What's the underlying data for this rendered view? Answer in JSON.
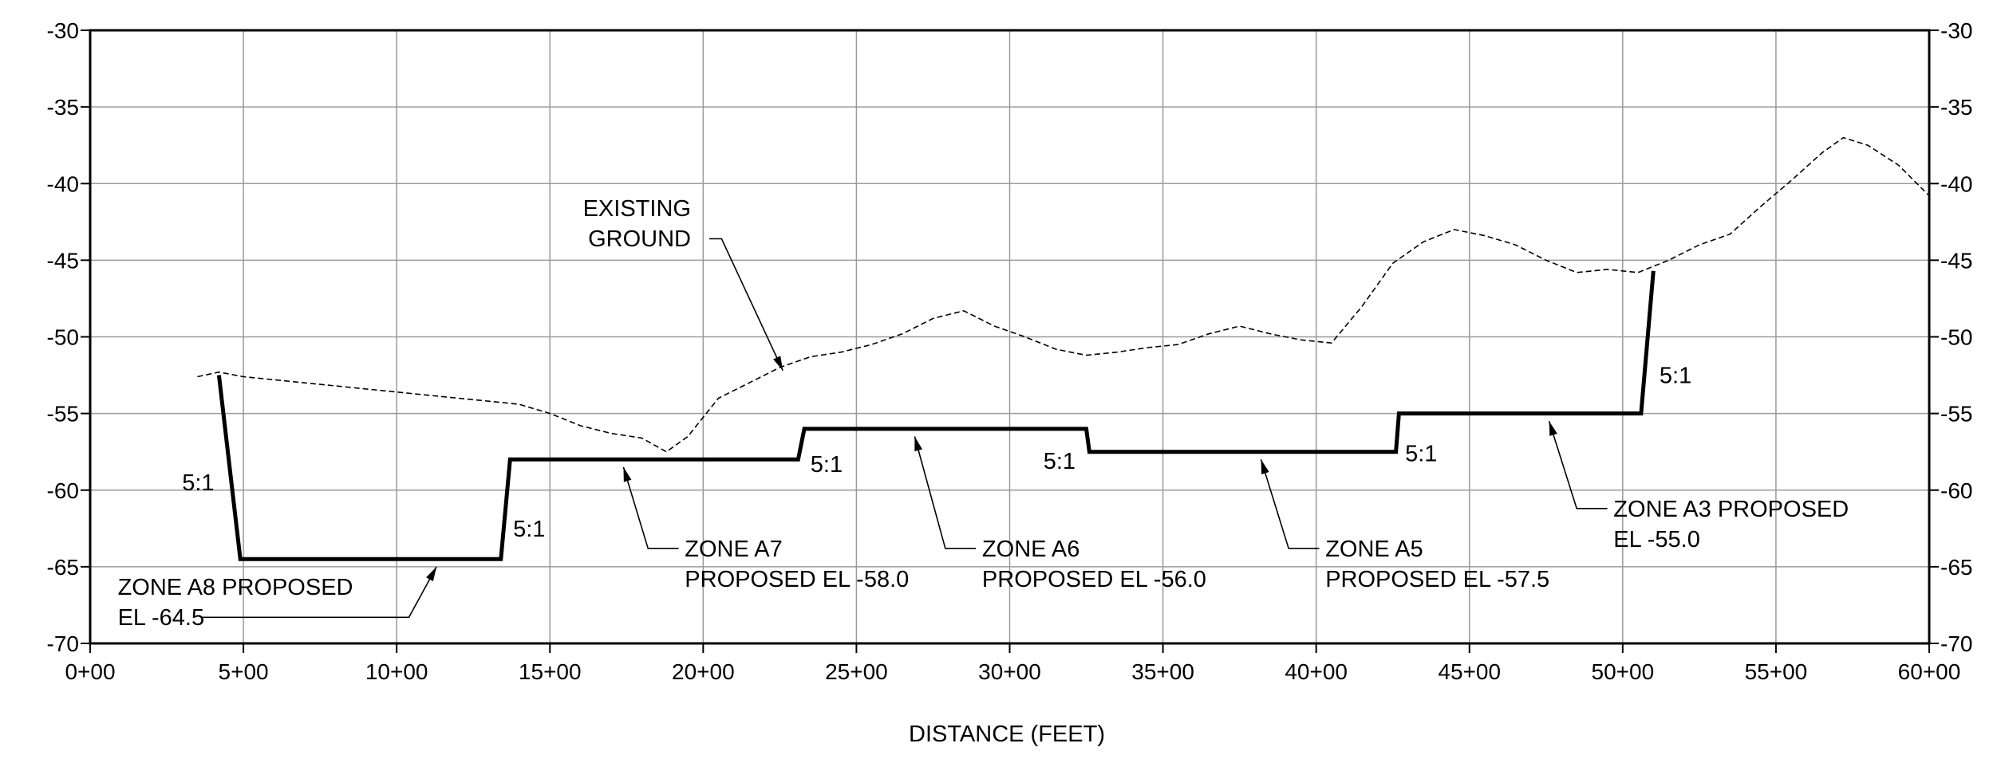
{
  "chart_data": {
    "type": "line",
    "xlabel": "DISTANCE (FEET)",
    "ylabel": "",
    "xlim": [
      0,
      60
    ],
    "ylim": [
      -70,
      -30
    ],
    "grid": true,
    "x_ticks": [
      {
        "value": 0,
        "label": "0+00"
      },
      {
        "value": 5,
        "label": "5+00"
      },
      {
        "value": 10,
        "label": "10+00"
      },
      {
        "value": 15,
        "label": "15+00"
      },
      {
        "value": 20,
        "label": "20+00"
      },
      {
        "value": 25,
        "label": "25+00"
      },
      {
        "value": 30,
        "label": "30+00"
      },
      {
        "value": 35,
        "label": "35+00"
      },
      {
        "value": 40,
        "label": "40+00"
      },
      {
        "value": 45,
        "label": "45+00"
      },
      {
        "value": 50,
        "label": "50+00"
      },
      {
        "value": 55,
        "label": "55+00"
      },
      {
        "value": 60,
        "label": "60+00"
      }
    ],
    "y_ticks": [
      {
        "value": -30,
        "label": "-30"
      },
      {
        "value": -35,
        "label": "-35"
      },
      {
        "value": -40,
        "label": "-40"
      },
      {
        "value": -45,
        "label": "-45"
      },
      {
        "value": -50,
        "label": "-50"
      },
      {
        "value": -55,
        "label": "-55"
      },
      {
        "value": -60,
        "label": "-60"
      },
      {
        "value": -65,
        "label": "-65"
      },
      {
        "value": -70,
        "label": "-70"
      }
    ],
    "series": [
      {
        "style": "dashed",
        "x": [
          3.5,
          4.2,
          5,
          6,
          7,
          8,
          9,
          10,
          11,
          12,
          13,
          14,
          15,
          16,
          17,
          18,
          18.8,
          19.5,
          20.5,
          21.5,
          22.5,
          23.5,
          24.5,
          25.5,
          26.5,
          27.5,
          28.5,
          29.5,
          30.5,
          31.5,
          32.5,
          33.5,
          34.5,
          35.5,
          36.5,
          37.5,
          38.5,
          39.5,
          40.5,
          41.5,
          42.5,
          43.5,
          44.5,
          45.5,
          46.5,
          47.5,
          48.5,
          49.5,
          50.5,
          51.5,
          52.5,
          53.5,
          54.5,
          55.5,
          56.5,
          57.2,
          58,
          59,
          60
        ],
        "y": [
          -52.6,
          -52.3,
          -52.6,
          -52.8,
          -53,
          -53.2,
          -53.4,
          -53.6,
          -53.8,
          -54,
          -54.2,
          -54.4,
          -55,
          -55.8,
          -56.3,
          -56.6,
          -57.5,
          -56.5,
          -54,
          -53,
          -52,
          -51.3,
          -51,
          -50.5,
          -49.8,
          -48.8,
          -48.3,
          -49.3,
          -50,
          -50.8,
          -51.2,
          -51,
          -50.7,
          -50.5,
          -49.8,
          -49.3,
          -49.8,
          -50.2,
          -50.4,
          -48,
          -45.2,
          -43.8,
          -43,
          -43.4,
          -44,
          -45,
          -45.8,
          -45.6,
          -45.8,
          -45,
          -44,
          -43.3,
          -41.5,
          -39.8,
          -38,
          -37,
          -37.5,
          -38.8,
          -40.8
        ]
      },
      {
        "style": "solid",
        "x": [
          4.2,
          4.9,
          13.4,
          13.7,
          23.1,
          23.3,
          32.5,
          32.6,
          42.6,
          42.7,
          50.6,
          51
        ],
        "y": [
          -52.5,
          -64.5,
          -64.5,
          -58,
          -58,
          -56,
          -56,
          -57.5,
          -57.5,
          -55,
          -55,
          -45.7
        ]
      }
    ],
    "annotations": [
      {
        "lines": [
          "EXISTING",
          "GROUND"
        ],
        "anchor": "end",
        "tx": 19.6,
        "ty": -41.6,
        "leader": [
          [
            20.2,
            -43.6
          ],
          [
            20.6,
            -43.6
          ],
          [
            22.6,
            -52.2
          ]
        ]
      },
      {
        "lines": [
          "ZONE A8 PROPOSED",
          "EL -64.5"
        ],
        "anchor": "start",
        "tx": 0.9,
        "ty": -66.3,
        "leader": [
          [
            3.6,
            -68.3
          ],
          [
            10.4,
            -68.3
          ],
          [
            11.3,
            -65
          ]
        ]
      },
      {
        "lines": [
          "ZONE A7",
          "PROPOSED EL -58.0"
        ],
        "anchor": "start",
        "tx": 19.4,
        "ty": -63.8,
        "leader": [
          [
            19.2,
            -63.8
          ],
          [
            18.2,
            -63.8
          ],
          [
            17.4,
            -58.5
          ]
        ]
      },
      {
        "lines": [
          "ZONE A6",
          "PROPOSED EL -56.0"
        ],
        "anchor": "start",
        "tx": 29.1,
        "ty": -63.8,
        "leader": [
          [
            28.9,
            -63.8
          ],
          [
            27.9,
            -63.8
          ],
          [
            26.9,
            -56.5
          ]
        ]
      },
      {
        "lines": [
          "ZONE A5",
          "PROPOSED EL -57.5"
        ],
        "anchor": "start",
        "tx": 40.3,
        "ty": -63.8,
        "leader": [
          [
            40.1,
            -63.8
          ],
          [
            39.1,
            -63.8
          ],
          [
            38.2,
            -58
          ]
        ]
      },
      {
        "lines": [
          "ZONE A3 PROPOSED",
          "EL -55.0"
        ],
        "anchor": "start",
        "tx": 49.7,
        "ty": -61.2,
        "leader": [
          [
            49.5,
            -61.2
          ],
          [
            48.5,
            -61.2
          ],
          [
            47.6,
            -55.5
          ]
        ]
      },
      {
        "lines": [
          "5:1"
        ],
        "anchor": "start",
        "tx": 3.0,
        "ty": -59.5
      },
      {
        "lines": [
          "5:1"
        ],
        "anchor": "start",
        "tx": 13.8,
        "ty": -62.5
      },
      {
        "lines": [
          "5:1"
        ],
        "anchor": "start",
        "tx": 23.5,
        "ty": -58.3
      },
      {
        "lines": [
          "5:1"
        ],
        "anchor": "start",
        "tx": 31.1,
        "ty": -58.1
      },
      {
        "lines": [
          "5:1"
        ],
        "anchor": "start",
        "tx": 42.9,
        "ty": -57.6
      },
      {
        "lines": [
          "5:1"
        ],
        "anchor": "start",
        "tx": 51.2,
        "ty": -52.5
      }
    ]
  }
}
